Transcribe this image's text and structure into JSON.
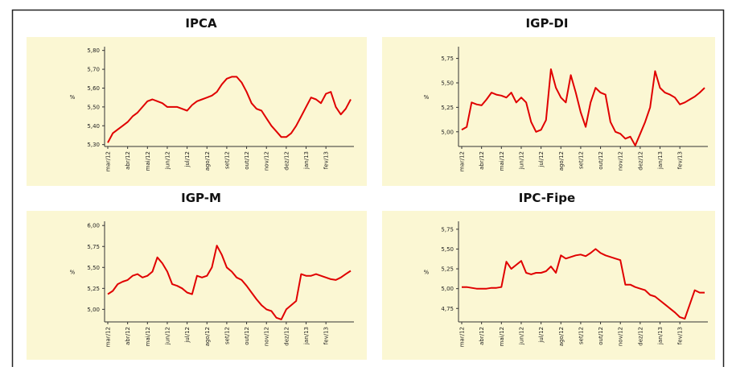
{
  "chart_data": [
    {
      "type": "line",
      "title": "IPCA",
      "y_label": "%",
      "categories": [
        "mar/12",
        null,
        null,
        null,
        "abr/12",
        null,
        null,
        null,
        "mai/12",
        null,
        null,
        null,
        "jun/12",
        null,
        null,
        null,
        "jul/12",
        null,
        null,
        null,
        "ago/12",
        null,
        null,
        null,
        "set/12",
        null,
        null,
        null,
        "out/12",
        null,
        null,
        null,
        "nov/12",
        null,
        null,
        null,
        "dez/12",
        null,
        null,
        null,
        "jan/13",
        null,
        null,
        null,
        "fev/13",
        null,
        null,
        null,
        null,
        null
      ],
      "series": [
        {
          "color": "#e00000",
          "values": [
            5.31,
            5.36,
            5.38,
            5.4,
            5.42,
            5.45,
            5.47,
            5.5,
            5.53,
            5.54,
            5.53,
            5.52,
            5.5,
            5.5,
            5.5,
            5.49,
            5.48,
            5.51,
            5.53,
            5.54,
            5.55,
            5.56,
            5.58,
            5.62,
            5.65,
            5.66,
            5.66,
            5.63,
            5.58,
            5.52,
            5.49,
            5.48,
            5.44,
            5.4,
            5.37,
            5.34,
            5.34,
            5.36,
            5.4,
            5.45,
            5.5,
            5.55,
            5.54,
            5.52,
            5.57,
            5.58,
            5.5,
            5.46,
            5.49,
            5.54
          ]
        }
      ],
      "ylim": [
        5.29,
        5.82
      ],
      "yticks": [
        {
          "value": 5.3,
          "label": "5,30"
        },
        {
          "value": 5.4,
          "label": "5,40"
        },
        {
          "value": 5.5,
          "label": "5,50"
        },
        {
          "value": 5.6,
          "label": "5,60"
        },
        {
          "value": 5.7,
          "label": "5,70"
        },
        {
          "value": 5.8,
          "label": "5,80"
        }
      ]
    },
    {
      "type": "line",
      "title": "IGP-DI",
      "y_label": "%",
      "categories": [
        "mar/12",
        null,
        null,
        null,
        "abr/12",
        null,
        null,
        null,
        "mai/12",
        null,
        null,
        null,
        "jun/12",
        null,
        null,
        null,
        "jul/12",
        null,
        null,
        null,
        "ago/12",
        null,
        null,
        null,
        "set/12",
        null,
        null,
        null,
        "out/12",
        null,
        null,
        null,
        "nov/12",
        null,
        null,
        null,
        "dez/12",
        null,
        null,
        null,
        "jan/13",
        null,
        null,
        null,
        "fev/13",
        null,
        null,
        null,
        null,
        null
      ],
      "series": [
        {
          "color": "#e00000",
          "values": [
            5.02,
            5.05,
            5.3,
            5.28,
            5.27,
            5.33,
            5.4,
            5.38,
            5.37,
            5.35,
            5.4,
            5.3,
            5.35,
            5.3,
            5.1,
            5.0,
            5.02,
            5.12,
            5.64,
            5.45,
            5.35,
            5.3,
            5.58,
            5.4,
            5.2,
            5.05,
            5.3,
            5.45,
            5.4,
            5.38,
            5.1,
            5.0,
            4.98,
            4.93,
            4.95,
            4.86,
            4.98,
            5.1,
            5.25,
            5.62,
            5.45,
            5.4,
            5.38,
            5.35,
            5.28,
            5.3,
            5.33,
            5.36,
            5.4,
            5.45
          ]
        }
      ],
      "ylim": [
        4.85,
        5.87
      ],
      "yticks": [
        {
          "value": 5.0,
          "label": "5,00"
        },
        {
          "value": 5.25,
          "label": "5,25"
        },
        {
          "value": 5.5,
          "label": "5,50"
        },
        {
          "value": 5.75,
          "label": "5,75"
        }
      ]
    },
    {
      "type": "line",
      "title": "IGP-M",
      "y_label": "%",
      "categories": [
        "mar/12",
        null,
        null,
        null,
        "abr/12",
        null,
        null,
        null,
        "mai/12",
        null,
        null,
        null,
        "jun/12",
        null,
        null,
        null,
        "jul/12",
        null,
        null,
        null,
        "ago/12",
        null,
        null,
        null,
        "set/12",
        null,
        null,
        null,
        "out/12",
        null,
        null,
        null,
        "nov/12",
        null,
        null,
        null,
        "dez/12",
        null,
        null,
        null,
        "jan/13",
        null,
        null,
        null,
        "fev/13",
        null,
        null,
        null,
        null,
        null
      ],
      "series": [
        {
          "color": "#e00000",
          "values": [
            5.18,
            5.22,
            5.3,
            5.33,
            5.35,
            5.4,
            5.42,
            5.38,
            5.4,
            5.45,
            5.62,
            5.55,
            5.45,
            5.3,
            5.28,
            5.25,
            5.2,
            5.18,
            5.4,
            5.38,
            5.4,
            5.5,
            5.76,
            5.65,
            5.5,
            5.45,
            5.38,
            5.35,
            5.28,
            5.2,
            5.12,
            5.05,
            5.0,
            4.98,
            4.9,
            4.88,
            5.0,
            5.05,
            5.1,
            5.42,
            5.4,
            5.4,
            5.42,
            5.4,
            5.38,
            5.36,
            5.35,
            5.38,
            5.42,
            5.46
          ]
        }
      ],
      "ylim": [
        4.85,
        6.05
      ],
      "yticks": [
        {
          "value": 5.0,
          "label": "5,00"
        },
        {
          "value": 5.25,
          "label": "5,25"
        },
        {
          "value": 5.5,
          "label": "5,50"
        },
        {
          "value": 5.75,
          "label": "5,75"
        },
        {
          "value": 6.0,
          "label": "6,00"
        }
      ]
    },
    {
      "type": "line",
      "title": "IPC-Fipe",
      "y_label": "%",
      "categories": [
        "mar/12",
        null,
        null,
        null,
        "abr/12",
        null,
        null,
        null,
        "mai/12",
        null,
        null,
        null,
        "jun/12",
        null,
        null,
        null,
        "jul/12",
        null,
        null,
        null,
        "ago/12",
        null,
        null,
        null,
        "set/12",
        null,
        null,
        null,
        "out/12",
        null,
        null,
        null,
        "nov/12",
        null,
        null,
        null,
        "dez/12",
        null,
        null,
        null,
        "jan/13",
        null,
        null,
        null,
        "fev/13",
        null,
        null,
        null,
        null,
        null
      ],
      "series": [
        {
          "color": "#e00000",
          "values": [
            5.02,
            5.02,
            5.01,
            5.0,
            5.0,
            5.0,
            5.01,
            5.01,
            5.02,
            5.34,
            5.25,
            5.3,
            5.35,
            5.2,
            5.18,
            5.2,
            5.2,
            5.22,
            5.28,
            5.2,
            5.42,
            5.38,
            5.4,
            5.42,
            5.43,
            5.41,
            5.45,
            5.5,
            5.45,
            5.42,
            5.4,
            5.38,
            5.36,
            5.05,
            5.05,
            5.02,
            5.0,
            4.98,
            4.92,
            4.9,
            4.85,
            4.8,
            4.75,
            4.7,
            4.64,
            4.62,
            4.8,
            4.98,
            4.95,
            4.95
          ]
        }
      ],
      "ylim": [
        4.58,
        5.85
      ],
      "yticks": [
        {
          "value": 4.75,
          "label": "4,75"
        },
        {
          "value": 5.0,
          "label": "5,00"
        },
        {
          "value": 5.25,
          "label": "5,25"
        },
        {
          "value": 5.5,
          "label": "5,50"
        },
        {
          "value": 5.75,
          "label": "5,75"
        }
      ]
    }
  ]
}
